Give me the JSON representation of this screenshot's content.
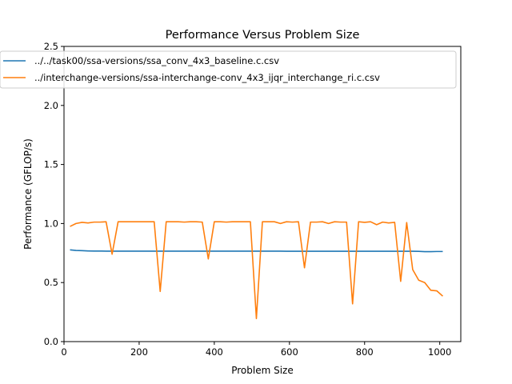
{
  "chart_data": {
    "type": "line",
    "title": "Performance Versus Problem Size",
    "xlabel": "Problem Size",
    "ylabel": "Performance (GFLOP/s)",
    "xlim": [
      0,
      1056
    ],
    "ylim": [
      0.0,
      2.5
    ],
    "x_ticks": [
      0,
      200,
      400,
      600,
      800,
      1000
    ],
    "y_ticks": [
      0.0,
      0.5,
      1.0,
      1.5,
      2.0,
      2.5
    ],
    "x_tick_labels": [
      "0",
      "200",
      "400",
      "600",
      "800",
      "1000"
    ],
    "y_tick_labels": [
      "0.0",
      "0.5",
      "1.0",
      "1.5",
      "2.0",
      "2.5"
    ],
    "grid": false,
    "legend_position": "top-left",
    "series": [
      {
        "name": "../../task00/ssa-versions/ssa_conv_4x3_baseline.c.csv",
        "color": "#1f77b4",
        "x": [
          16,
          32,
          48,
          64,
          80,
          96,
          112,
          128,
          144,
          160,
          176,
          192,
          208,
          224,
          240,
          256,
          272,
          288,
          304,
          320,
          336,
          352,
          368,
          384,
          400,
          416,
          432,
          448,
          464,
          480,
          496,
          512,
          528,
          544,
          560,
          576,
          592,
          608,
          624,
          640,
          656,
          672,
          688,
          704,
          720,
          736,
          752,
          768,
          784,
          800,
          816,
          832,
          848,
          864,
          880,
          896,
          912,
          928,
          944,
          960,
          976,
          992,
          1008
        ],
        "y": [
          0.777,
          0.772,
          0.77,
          0.768,
          0.767,
          0.767,
          0.766,
          0.766,
          0.766,
          0.766,
          0.766,
          0.766,
          0.766,
          0.766,
          0.766,
          0.766,
          0.766,
          0.766,
          0.766,
          0.766,
          0.766,
          0.766,
          0.766,
          0.766,
          0.766,
          0.766,
          0.766,
          0.766,
          0.766,
          0.766,
          0.766,
          0.766,
          0.766,
          0.766,
          0.766,
          0.766,
          0.765,
          0.765,
          0.765,
          0.765,
          0.765,
          0.765,
          0.765,
          0.765,
          0.765,
          0.765,
          0.765,
          0.765,
          0.765,
          0.765,
          0.765,
          0.765,
          0.765,
          0.765,
          0.765,
          0.765,
          0.765,
          0.765,
          0.764,
          0.762,
          0.762,
          0.763,
          0.763
        ]
      },
      {
        "name": "../interchange-versions/ssa-interchange-conv_4x3_ijqr_interchange_ri.c.csv",
        "color": "#ff7f0e",
        "x": [
          16,
          32,
          48,
          64,
          80,
          96,
          112,
          128,
          144,
          160,
          176,
          192,
          208,
          224,
          240,
          256,
          272,
          288,
          304,
          320,
          336,
          352,
          368,
          384,
          400,
          416,
          432,
          448,
          464,
          480,
          496,
          512,
          528,
          544,
          560,
          576,
          592,
          608,
          624,
          640,
          656,
          672,
          688,
          704,
          720,
          736,
          752,
          768,
          784,
          800,
          816,
          832,
          848,
          864,
          880,
          896,
          912,
          928,
          944,
          960,
          976,
          992,
          1008
        ],
        "y": [
          0.975,
          1.0,
          1.01,
          1.005,
          1.012,
          1.012,
          1.015,
          0.74,
          1.015,
          1.015,
          1.015,
          1.015,
          1.015,
          1.015,
          1.015,
          0.425,
          1.015,
          1.015,
          1.015,
          1.012,
          1.015,
          1.015,
          1.012,
          0.7,
          1.015,
          1.015,
          1.012,
          1.015,
          1.015,
          1.015,
          1.015,
          0.195,
          1.015,
          1.015,
          1.015,
          1.0,
          1.015,
          1.012,
          1.015,
          0.625,
          1.012,
          1.012,
          1.015,
          1.0,
          1.015,
          1.012,
          1.012,
          0.32,
          1.015,
          1.01,
          1.015,
          0.99,
          1.012,
          1.005,
          1.01,
          0.51,
          1.008,
          0.61,
          0.52,
          0.5,
          0.435,
          0.43,
          0.385
        ]
      }
    ]
  }
}
